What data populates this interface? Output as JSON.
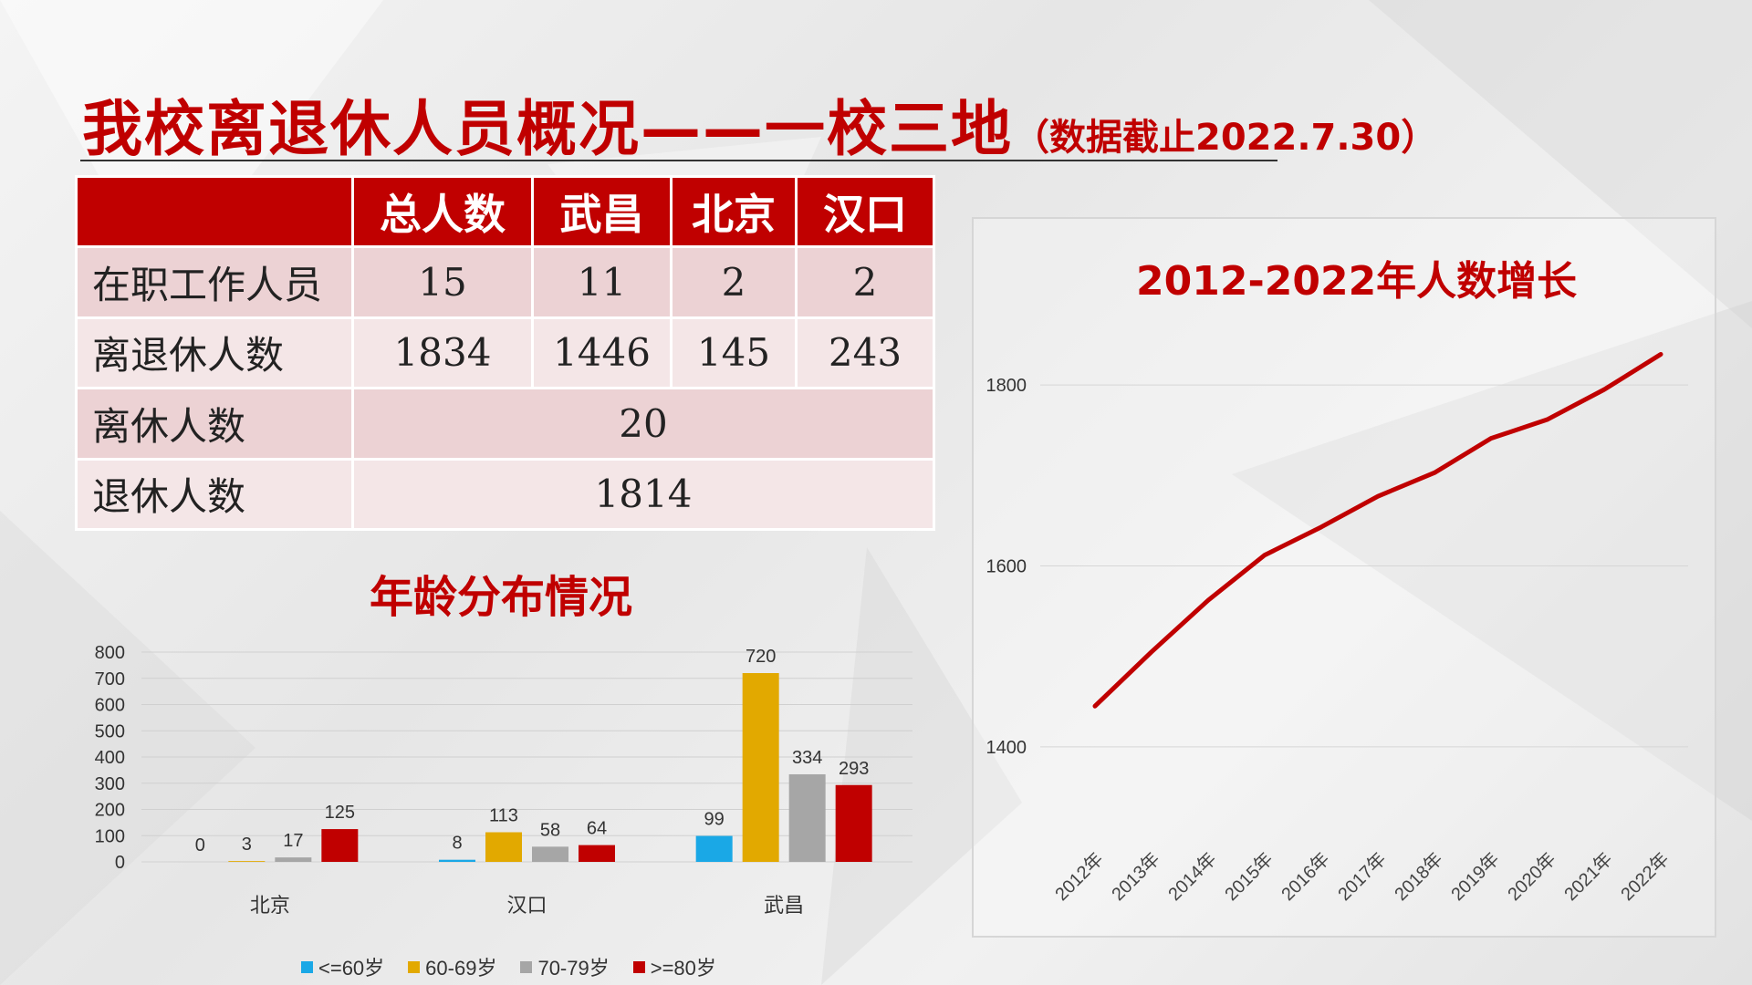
{
  "title": {
    "main": "我校离退休人员概况——一校三地",
    "sub": "（数据截止2022.7.30）"
  },
  "table": {
    "headers": [
      "",
      "总人数",
      "武昌",
      "北京",
      "汉口"
    ],
    "rows": [
      {
        "label": "在职工作人员",
        "values": [
          "15",
          "11",
          "2",
          "2"
        ]
      },
      {
        "label": "离退休人数",
        "values": [
          "1834",
          "1446",
          "145",
          "243"
        ]
      },
      {
        "label": "离休人数",
        "merged": "20"
      },
      {
        "label": "退休人数",
        "merged": "1814"
      }
    ]
  },
  "chart_data": [
    {
      "type": "bar",
      "title": "年龄分布情况",
      "categories": [
        "北京",
        "汉口",
        "武昌"
      ],
      "series": [
        {
          "name": "<=60岁",
          "color": "#1aa8e6",
          "values": [
            0,
            8,
            99
          ]
        },
        {
          "name": "60-69岁",
          "color": "#e2a900",
          "values": [
            3,
            113,
            720
          ]
        },
        {
          "name": "70-79岁",
          "color": "#a6a6a6",
          "values": [
            17,
            58,
            334
          ]
        },
        {
          "name": ">=80岁",
          "color": "#c00000",
          "values": [
            125,
            64,
            293
          ]
        }
      ],
      "ylim": [
        0,
        800
      ],
      "yticks": [
        0,
        100,
        200,
        300,
        400,
        500,
        600,
        700,
        800
      ],
      "grid": true,
      "legend": "bottom"
    },
    {
      "type": "line",
      "title": "2012-2022年人数增长",
      "x": [
        "2012年",
        "2013年",
        "2014年",
        "2015年",
        "2016年",
        "2017年",
        "2018年",
        "2019年",
        "2020年",
        "2021年",
        "2022年"
      ],
      "series": [
        {
          "color": "#c00000",
          "values": [
            1445,
            1505,
            1562,
            1612,
            1643,
            1677,
            1703,
            1741,
            1762,
            1795,
            1834
          ]
        }
      ],
      "ylim": [
        1300,
        1900
      ],
      "yticks": [
        1400,
        1600,
        1800
      ],
      "grid": true
    }
  ]
}
